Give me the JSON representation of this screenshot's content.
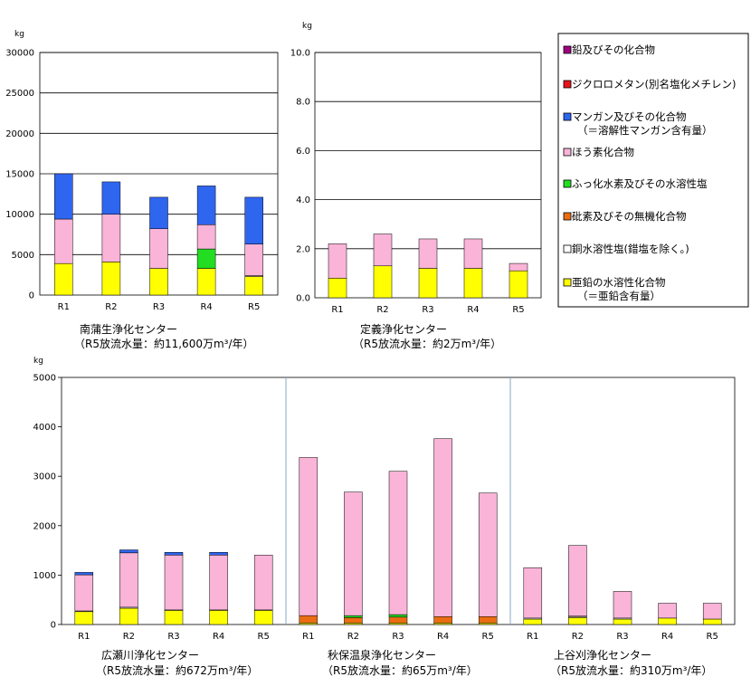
{
  "unit_label": "kg",
  "colors": {
    "lead": "#a0007e",
    "dichloromethane": "#e8141c",
    "manganese": "#2f66f0",
    "boron": "#f9b4d8",
    "fluorine": "#22dd22",
    "arsenic": "#ea6d13",
    "copper": "#ffffff",
    "zinc": "#ffff00"
  },
  "legend": [
    {
      "key": "lead",
      "lines": [
        "鉛及びその化合物"
      ]
    },
    {
      "key": "dichloromethane",
      "lines": [
        "ジクロロメタン(別名塩化メチレン)"
      ]
    },
    {
      "key": "manganese",
      "lines": [
        "マンガン及びその化合物",
        "（＝溶解性マンガン含有量）"
      ]
    },
    {
      "key": "boron",
      "lines": [
        "ほう素化合物"
      ]
    },
    {
      "key": "fluorine",
      "lines": [
        "ふっ化水素及びその水溶性塩"
      ]
    },
    {
      "key": "arsenic",
      "lines": [
        "砒素及びその無機化合物"
      ]
    },
    {
      "key": "copper",
      "lines": [
        "銅水溶性塩(錯塩を除く。)"
      ]
    },
    {
      "key": "zinc",
      "lines": [
        "亜鉛の水溶性化合物",
        "（＝亜鉛含有量）"
      ]
    }
  ],
  "chart_data": [
    {
      "type": "bar",
      "stacked": true,
      "title": "南蒲生浄化センター",
      "subtitle": "（R5放流水量：約11,600万m³/年）",
      "ylabel": "kg",
      "ylim": [
        0,
        30000
      ],
      "yticks": [
        "0",
        "5000",
        "10000",
        "15000",
        "20000",
        "25000",
        "30000"
      ],
      "grid": true,
      "categories": [
        "R1",
        "R2",
        "R3",
        "R4",
        "R5"
      ],
      "series": [
        {
          "key": "zinc",
          "values": [
            3900,
            4100,
            3300,
            3300,
            2300
          ]
        },
        {
          "key": "copper",
          "values": [
            0,
            0,
            0,
            0,
            100
          ]
        },
        {
          "key": "fluorine",
          "values": [
            0,
            0,
            0,
            2400,
            0
          ]
        },
        {
          "key": "boron",
          "values": [
            5500,
            5900,
            4900,
            3000,
            3900
          ]
        },
        {
          "key": "manganese",
          "values": [
            5600,
            4000,
            3900,
            4800,
            5800
          ]
        }
      ]
    },
    {
      "type": "bar",
      "stacked": true,
      "title": "定義浄化センター",
      "subtitle": "（R5放流水量：約2万m³/年）",
      "ylabel": "kg",
      "ylim": [
        0,
        10
      ],
      "yticks": [
        "0.0",
        "2.0",
        "4.0",
        "6.0",
        "8.0",
        "10.0"
      ],
      "grid": true,
      "categories": [
        "R1",
        "R2",
        "R3",
        "R4",
        "R5"
      ],
      "series": [
        {
          "key": "zinc",
          "values": [
            0.8,
            1.3,
            1.2,
            1.2,
            1.1
          ]
        },
        {
          "key": "boron",
          "values": [
            1.4,
            1.3,
            1.2,
            1.2,
            0.3
          ]
        }
      ]
    },
    {
      "type": "bar",
      "stacked": true,
      "title": "広瀬川浄化センター",
      "subtitle": "（R5放流水量：約672万m³/年）",
      "ylabel": "kg",
      "ylim": [
        0,
        5000
      ],
      "yticks": [
        "0",
        "1000",
        "2000",
        "3000",
        "4000",
        "5000"
      ],
      "grid": false,
      "categories": [
        "R1",
        "R2",
        "R3",
        "R4",
        "R5"
      ],
      "series": [
        {
          "key": "zinc",
          "values": [
            260,
            330,
            290,
            290,
            290
          ]
        },
        {
          "key": "copper",
          "values": [
            15,
            20,
            5,
            5,
            5
          ]
        },
        {
          "key": "boron",
          "values": [
            730,
            1100,
            1110,
            1110,
            1110
          ]
        },
        {
          "key": "manganese",
          "values": [
            50,
            60,
            55,
            55,
            0
          ]
        }
      ]
    },
    {
      "type": "bar",
      "stacked": true,
      "title": "秋保温泉浄化センター",
      "subtitle": "（R5放流水量：約65万m³/年）",
      "ylabel": "kg",
      "ylim": [
        0,
        5000
      ],
      "grid": false,
      "categories": [
        "R1",
        "R2",
        "R3",
        "R4",
        "R5"
      ],
      "series": [
        {
          "key": "zinc",
          "values": [
            30,
            30,
            30,
            30,
            30
          ]
        },
        {
          "key": "arsenic",
          "values": [
            150,
            110,
            120,
            130,
            130
          ]
        },
        {
          "key": "fluorine",
          "values": [
            0,
            40,
            50,
            0,
            0
          ]
        },
        {
          "key": "boron",
          "values": [
            3200,
            2500,
            2900,
            3600,
            2500
          ]
        }
      ]
    },
    {
      "type": "bar",
      "stacked": true,
      "title": "上谷刈浄化センター",
      "subtitle": "（R5放流水量：約310万m³/年）",
      "ylabel": "kg",
      "ylim": [
        0,
        5000
      ],
      "grid": false,
      "categories": [
        "R1",
        "R2",
        "R3",
        "R4",
        "R5"
      ],
      "series": [
        {
          "key": "zinc",
          "values": [
            110,
            140,
            110,
            130,
            110
          ]
        },
        {
          "key": "copper",
          "values": [
            20,
            20,
            20,
            0,
            0
          ]
        },
        {
          "key": "arsenic",
          "values": [
            0,
            10,
            0,
            0,
            0
          ]
        },
        {
          "key": "boron",
          "values": [
            1020,
            1430,
            540,
            300,
            320
          ]
        }
      ]
    }
  ]
}
